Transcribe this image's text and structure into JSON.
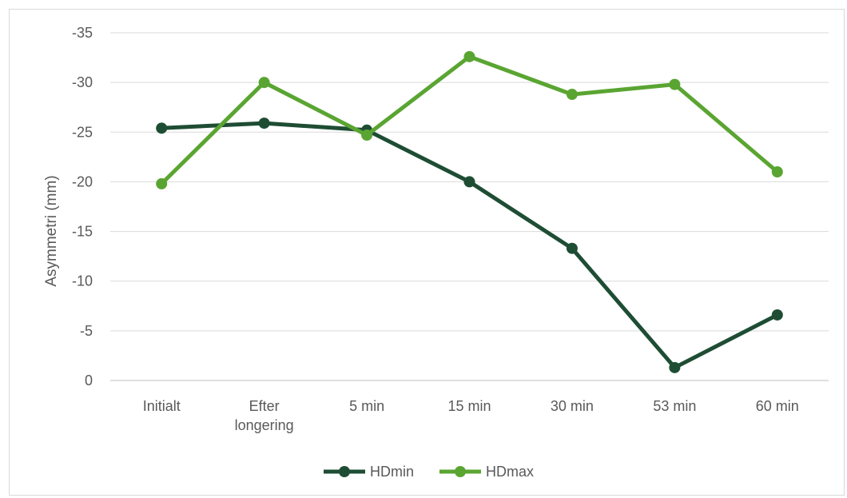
{
  "chart_data": {
    "type": "line",
    "categories": [
      "Initialt",
      "Efter longering",
      "5 min",
      "15 min",
      "30 min",
      "53 min",
      "60 min"
    ],
    "category_lines": [
      [
        "Initialt"
      ],
      [
        "Efter",
        "longering"
      ],
      [
        "5 min"
      ],
      [
        "15 min"
      ],
      [
        "30 min"
      ],
      [
        "53 min"
      ],
      [
        "60 min"
      ]
    ],
    "series": [
      {
        "name": "HDmin",
        "color": "#1e4d34",
        "values": [
          -25.4,
          -25.9,
          -25.2,
          -20.0,
          -13.3,
          -1.3,
          -6.6
        ]
      },
      {
        "name": "HDmax",
        "color": "#5aa532",
        "values": [
          -19.8,
          -30.0,
          -24.7,
          -32.6,
          -28.8,
          -29.8,
          -21.0
        ]
      }
    ],
    "ylabel": "Asymmetri (mm)",
    "ylim": [
      0,
      -35
    ],
    "yticks": [
      0,
      -5,
      -10,
      -15,
      -20,
      -25,
      -30,
      -35
    ],
    "grid": true,
    "legend_position": "bottom"
  }
}
